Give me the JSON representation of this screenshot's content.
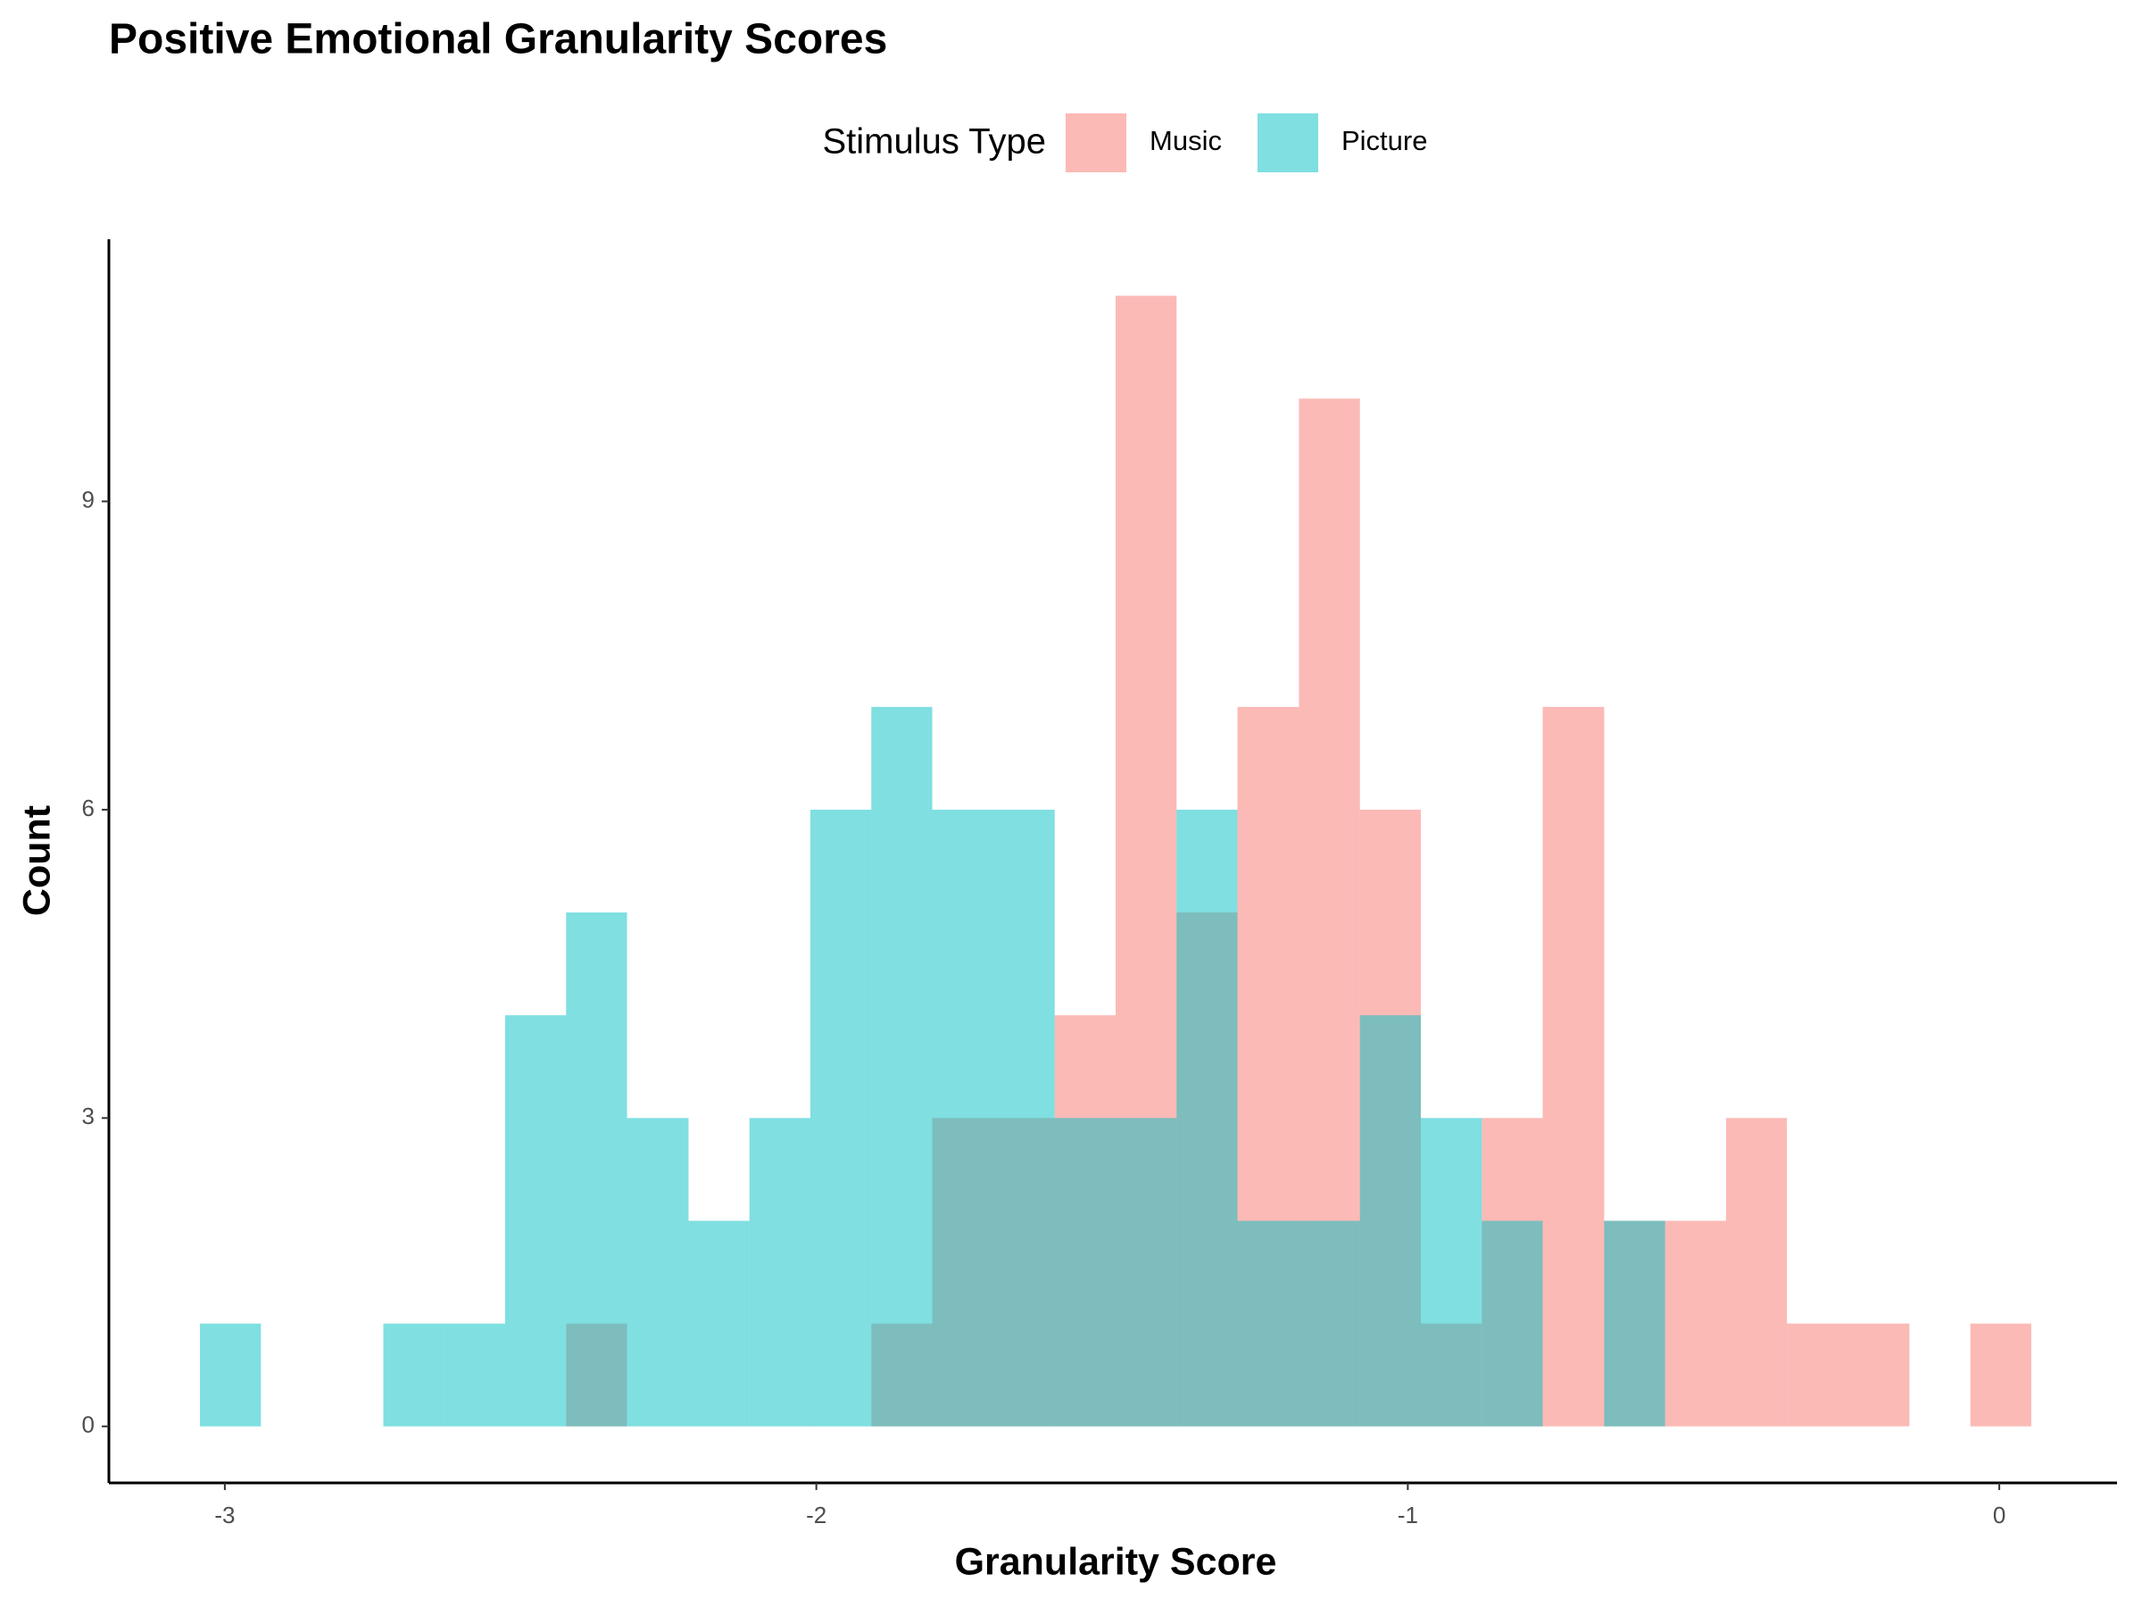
{
  "chart_data": {
    "type": "histogram",
    "title": "Positive Emotional Granularity Scores",
    "x_label": "Granularity Score",
    "y_label": "Count",
    "legend_title": "Stimulus Type",
    "legend_position": "top",
    "bins": [
      -3.042,
      -2.939,
      -2.836,
      -2.732,
      -2.629,
      -2.526,
      -2.423,
      -2.32,
      -2.216,
      -2.113,
      -2.01,
      -1.907,
      -1.804,
      -1.7,
      -1.597,
      -1.494,
      -1.391,
      -1.288,
      -1.184,
      -1.081,
      -0.978,
      -0.875,
      -0.772,
      -0.668,
      -0.565,
      -0.462,
      -0.359,
      -0.256,
      -0.152,
      -0.049,
      0.054
    ],
    "series": [
      {
        "name": "Music",
        "color": "#F8766D",
        "opacity": 0.5,
        "values": [
          0,
          0,
          0,
          0,
          0,
          0,
          1,
          0,
          0,
          0,
          0,
          1,
          3,
          3,
          4,
          11,
          5,
          7,
          10,
          6,
          1,
          3,
          7,
          2,
          2,
          3,
          1,
          1,
          0,
          1
        ]
      },
      {
        "name": "Picture",
        "color": "#00BFC4",
        "opacity": 0.5,
        "values": [
          1,
          0,
          0,
          1,
          1,
          4,
          5,
          3,
          2,
          3,
          6,
          7,
          6,
          6,
          3,
          3,
          6,
          2,
          2,
          4,
          3,
          2,
          0,
          2,
          0,
          0,
          0,
          0,
          0,
          0
        ]
      }
    ],
    "xlim": [
      -3.196,
      0.199
    ],
    "ylim": [
      -0.55,
      11.55
    ],
    "xticks": [
      -3,
      -2,
      -1,
      0
    ],
    "yticks": [
      0,
      3,
      6,
      9
    ],
    "grid": false
  }
}
